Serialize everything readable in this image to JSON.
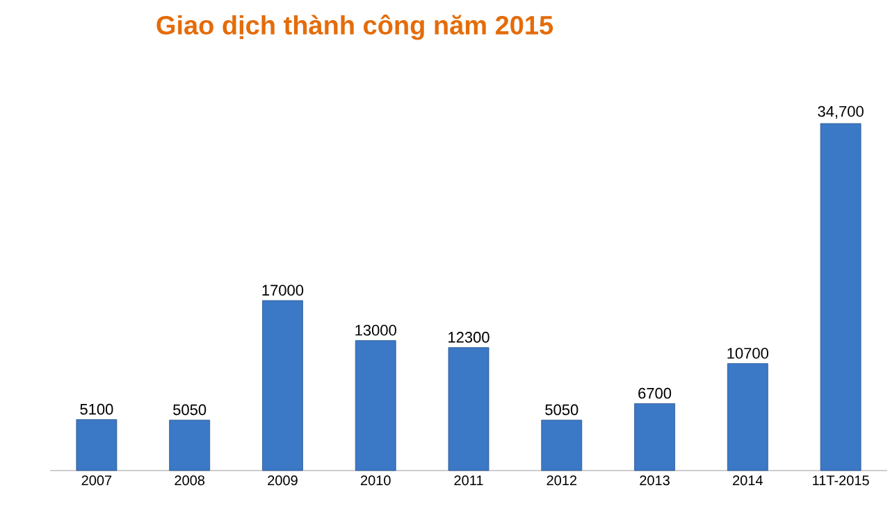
{
  "chart_data": {
    "type": "bar",
    "title": "Giao dịch thành công năm 2015",
    "categories": [
      "2007",
      "2008",
      "2009",
      "2010",
      "2011",
      "2012",
      "2013",
      "2014",
      "11T-2015"
    ],
    "values": [
      5100,
      5050,
      17000,
      13000,
      12300,
      5050,
      6700,
      10700,
      34700
    ],
    "value_labels": [
      "5100",
      "5050",
      "17000",
      "13000",
      "12300",
      "5050",
      "6700",
      "10700",
      "34,700"
    ],
    "color": "#3b78c6"
  }
}
